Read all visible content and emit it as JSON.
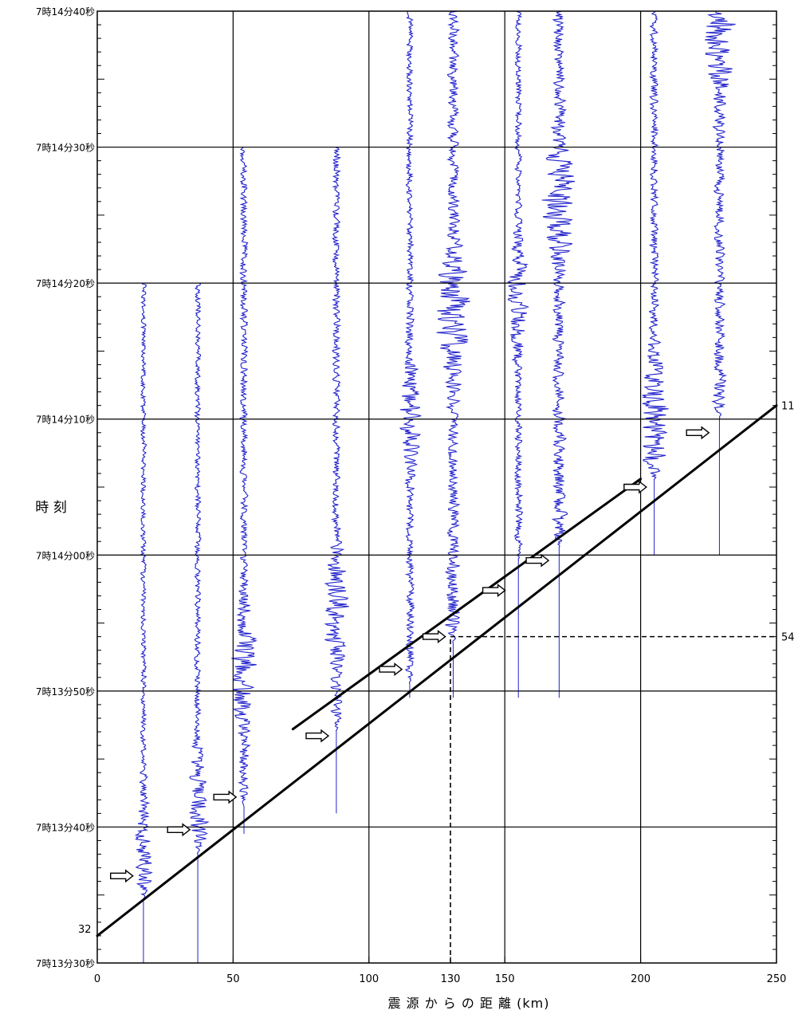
{
  "chart_data": {
    "type": "line",
    "title": "",
    "ylabel": "時 刻",
    "xlabel": "震 源 か ら の 距 離 (km)",
    "xlim": [
      0,
      250
    ],
    "ylim_seconds_after_7h13m30s": [
      0,
      70
    ],
    "x_ticks": [
      {
        "value": 0,
        "label": "0"
      },
      {
        "value": 50,
        "label": "50"
      },
      {
        "value": 100,
        "label": "100"
      },
      {
        "value": 130,
        "label": "130"
      },
      {
        "value": 150,
        "label": "150"
      },
      {
        "value": 200,
        "label": "200"
      },
      {
        "value": 250,
        "label": "250"
      }
    ],
    "y_ticks": [
      {
        "value": 0,
        "label": "7時13分30秒"
      },
      {
        "value": 10,
        "label": "7時13分40秒"
      },
      {
        "value": 20,
        "label": "7時13分50秒"
      },
      {
        "value": 30,
        "label": "7時14分00秒"
      },
      {
        "value": 40,
        "label": "7時14分10秒"
      },
      {
        "value": 50,
        "label": "7時14分20秒"
      },
      {
        "value": 60,
        "label": "7時14分30秒"
      },
      {
        "value": 70,
        "label": "7時14分40秒"
      }
    ],
    "grid": true,
    "series": [
      {
        "points": [
          [
            0,
            2
          ],
          [
            250,
            41
          ]
        ]
      },
      {
        "points": [
          [
            72,
            17.2
          ],
          [
            200,
            35.6
          ]
        ]
      }
    ],
    "reference_lines": [
      {
        "kind": "vertical",
        "x": 130,
        "y_from": 0,
        "y_to": 24,
        "style": "dashed"
      },
      {
        "kind": "horizontal",
        "y": 24,
        "x_from": 130,
        "x_to": 250,
        "style": "dashed"
      }
    ],
    "annotations": [
      {
        "text": "32",
        "x": 0,
        "y": 2
      },
      {
        "text": "11",
        "x": 250,
        "y": 41
      },
      {
        "text": "54",
        "x": 250,
        "y": 24
      }
    ],
    "seismograms": [
      {
        "x": 17,
        "start": 0.0,
        "end": 50,
        "onset": 4.6,
        "peak": 7.5,
        "amp": 2.0
      },
      {
        "x": 37,
        "start": 0.0,
        "end": 50,
        "onset": 8.0,
        "peak": 11.0,
        "amp": 2.2
      },
      {
        "x": 54,
        "start": 9.5,
        "end": 60,
        "onset": 11.5,
        "peak": 22.0,
        "amp": 2.8
      },
      {
        "x": 88,
        "start": 11.0,
        "end": 60,
        "onset": 17.0,
        "peak": 26.0,
        "amp": 2.8
      },
      {
        "x": 115,
        "start": 19.5,
        "end": 70,
        "onset": 20.5,
        "peak": 40.5,
        "amp": 2.6
      },
      {
        "x": 131,
        "start": 19.5,
        "end": 70,
        "onset": 23.5,
        "peak": 48.0,
        "amp": 4.2
      },
      {
        "x": 155,
        "start": 19.5,
        "end": 70,
        "onset": 29.5,
        "peak": 48.5,
        "amp": 2.4
      },
      {
        "x": 170,
        "start": 19.5,
        "end": 70,
        "onset": 30.5,
        "peak": 56.0,
        "amp": 4.2
      },
      {
        "x": 205,
        "start": 30.0,
        "end": 70,
        "onset": 35.5,
        "peak": 40.0,
        "amp": 3.2
      },
      {
        "x": 229,
        "start": 30.0,
        "end": 70,
        "onset": 40.0,
        "peak": 68.0,
        "amp": 3.6
      }
    ],
    "arrival_markers": [
      {
        "x": 9,
        "y": 6.4
      },
      {
        "x": 30,
        "y": 9.8
      },
      {
        "x": 47,
        "y": 12.2
      },
      {
        "x": 81,
        "y": 16.7
      },
      {
        "x": 108,
        "y": 21.6
      },
      {
        "x": 124,
        "y": 24.0
      },
      {
        "x": 146,
        "y": 27.4
      },
      {
        "x": 162,
        "y": 29.6
      },
      {
        "x": 198,
        "y": 35.0
      },
      {
        "x": 221,
        "y": 39.0
      }
    ],
    "colors": {
      "trace": "#2222cc",
      "axis": "#000000",
      "grid": "#000000",
      "background": "#ffffff",
      "marker_fill": "#ffffff"
    }
  }
}
